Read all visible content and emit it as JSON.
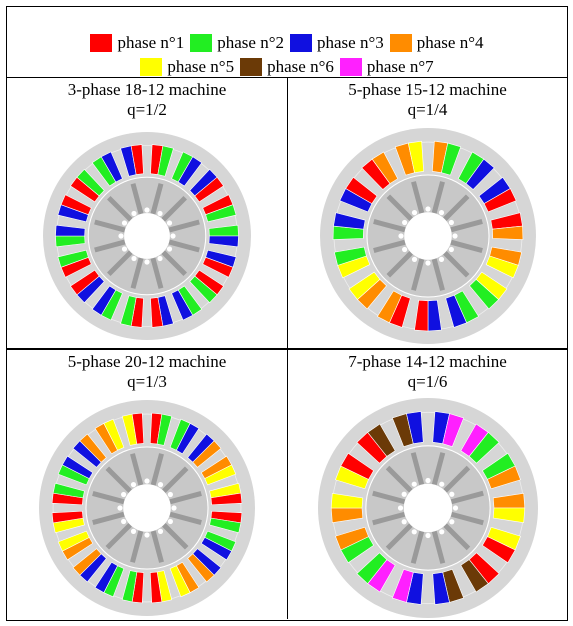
{
  "legend": {
    "row1": [
      {
        "label": "phase n°1",
        "color": "#ff0000"
      },
      {
        "label": "phase n°2",
        "color": "#22ee22"
      },
      {
        "label": "phase n°3",
        "color": "#1010e0"
      },
      {
        "label": "phase n°4",
        "color": "#ff8c00"
      }
    ],
    "row2": [
      {
        "label": "phase n°5",
        "color": "#ffff00"
      },
      {
        "label": "phase n°6",
        "color": "#6b3a07"
      },
      {
        "label": "phase n°7",
        "color": "#ff20ff"
      }
    ]
  },
  "cells": [
    {
      "title": "3-phase 18-12 machine",
      "q": "q=1/2",
      "slots": 18,
      "coils": [
        [
          1,
          2
        ],
        [
          2,
          3
        ],
        [
          3,
          1
        ],
        [
          1,
          2
        ],
        [
          2,
          3
        ],
        [
          3,
          1
        ],
        [
          1,
          2
        ],
        [
          2,
          3
        ],
        [
          3,
          1
        ],
        [
          1,
          2
        ],
        [
          2,
          3
        ],
        [
          3,
          1
        ],
        [
          1,
          2
        ],
        [
          2,
          3
        ],
        [
          3,
          1
        ],
        [
          1,
          2
        ],
        [
          2,
          3
        ],
        [
          3,
          1
        ]
      ]
    },
    {
      "title": "5-phase 15-12 machine",
      "q": "q=1/4",
      "slots": 15,
      "coils": [
        [
          4,
          2
        ],
        [
          2,
          3
        ],
        [
          3,
          1
        ],
        [
          1,
          4
        ],
        [
          4,
          5
        ],
        [
          5,
          2
        ],
        [
          2,
          3
        ],
        [
          3,
          1
        ],
        [
          1,
          4
        ],
        [
          4,
          5
        ],
        [
          5,
          2
        ],
        [
          2,
          3
        ],
        [
          3,
          1
        ],
        [
          1,
          4
        ],
        [
          4,
          5
        ]
      ]
    },
    {
      "title": "5-phase 20-12 machine",
      "q": "q=1/3",
      "slots": 20,
      "coils": [
        [
          1,
          2
        ],
        [
          2,
          3
        ],
        [
          3,
          4
        ],
        [
          4,
          5
        ],
        [
          5,
          1
        ],
        [
          1,
          2
        ],
        [
          2,
          3
        ],
        [
          3,
          4
        ],
        [
          4,
          5
        ],
        [
          5,
          1
        ],
        [
          1,
          2
        ],
        [
          2,
          3
        ],
        [
          3,
          4
        ],
        [
          4,
          5
        ],
        [
          5,
          1
        ],
        [
          1,
          2
        ],
        [
          2,
          3
        ],
        [
          3,
          4
        ],
        [
          4,
          5
        ],
        [
          5,
          1
        ]
      ]
    },
    {
      "title": "7-phase 14-12 machine",
      "q": "q=1/6",
      "slots": 14,
      "coils": [
        [
          3,
          7
        ],
        [
          7,
          2
        ],
        [
          2,
          4
        ],
        [
          4,
          5
        ],
        [
          5,
          1
        ],
        [
          1,
          6
        ],
        [
          6,
          3
        ],
        [
          3,
          7
        ],
        [
          7,
          2
        ],
        [
          2,
          4
        ],
        [
          4,
          5
        ],
        [
          5,
          1
        ],
        [
          1,
          6
        ],
        [
          6,
          3
        ]
      ]
    }
  ],
  "style": {
    "stator": "#d6d6d6",
    "rotor": "#c8c8c8",
    "tooth": "#e2e2e2",
    "magnet": "#9a9a9a",
    "line": "#ffffff"
  }
}
